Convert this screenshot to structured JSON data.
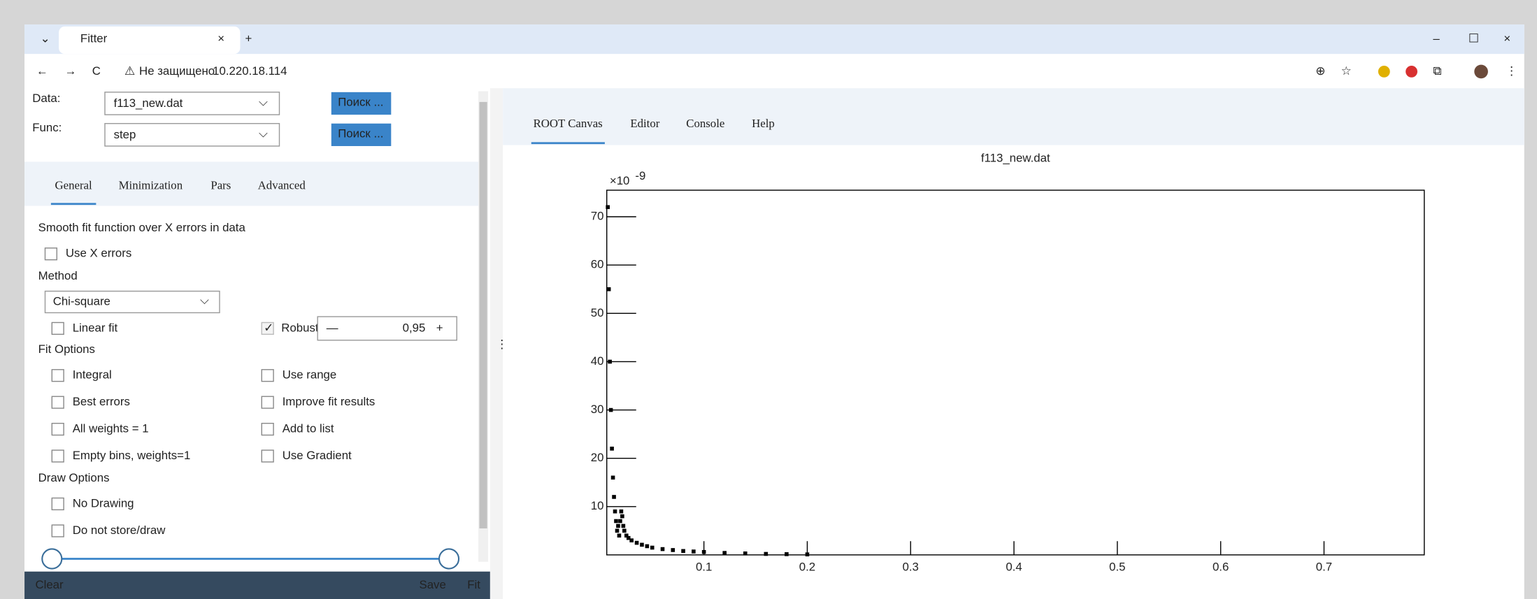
{
  "browser": {
    "tab_title": "Fitter",
    "new_tab": "+",
    "security": "Не защищено",
    "url": "10.220.18.114"
  },
  "fitter": {
    "data_label": "Data:",
    "data_value": "f113_new.dat",
    "func_label": "Func:",
    "func_value": "step",
    "search_buttons": [
      "Поиск ...",
      "Поиск ..."
    ],
    "tabs": [
      "General",
      "Minimization",
      "Pars",
      "Advanced"
    ],
    "smooth_heading": "Smooth fit function over X errors in data",
    "use_x_errors": "Use X errors",
    "method_heading": "Method",
    "method_value": "Chi-square",
    "linear_fit": "Linear fit",
    "robust": "Robust",
    "robust_minus": "—",
    "robust_value": "0,95",
    "robust_plus": "+",
    "fit_options_heading": "Fit Options",
    "fit_options": [
      [
        "Integral",
        "Use range"
      ],
      [
        "Best errors",
        "Improve fit results"
      ],
      [
        "All weights = 1",
        "Add to list"
      ],
      [
        "Empty bins, weights=1",
        "Use Gradient"
      ]
    ],
    "draw_options_heading": "Draw Options",
    "draw_options": [
      "No Drawing",
      "Do not store/draw"
    ],
    "footer": {
      "clear": "Clear",
      "save": "Save",
      "fit": "Fit"
    }
  },
  "canvas_tabs": [
    "ROOT Canvas",
    "Editor",
    "Console",
    "Help"
  ],
  "chart_data": {
    "type": "scatter",
    "title": "f113_new.dat",
    "y_multiplier": "×10",
    "y_multiplier_exponent": "-9",
    "x": [
      0.007,
      0.008,
      0.009,
      0.01,
      0.011,
      0.012,
      0.013,
      0.014,
      0.015,
      0.016,
      0.017,
      0.018,
      0.019,
      0.02,
      0.021,
      0.022,
      0.023,
      0.025,
      0.027,
      0.03,
      0.035,
      0.04,
      0.045,
      0.05,
      0.06,
      0.07,
      0.08,
      0.09,
      0.1,
      0.12,
      0.14,
      0.16,
      0.18,
      0.2
    ],
    "values": [
      72,
      55,
      40,
      30,
      22,
      16,
      12,
      9,
      7,
      5,
      6,
      4,
      7,
      9,
      8,
      6,
      5,
      4,
      3.5,
      3,
      2.5,
      2.1,
      1.8,
      1.5,
      1.2,
      1.0,
      0.8,
      0.7,
      0.6,
      0.4,
      0.3,
      0.2,
      0.15,
      0.1
    ],
    "color": "#000000",
    "xlim": [
      0.006,
      0.797
    ],
    "ylim": [
      0,
      75.5
    ],
    "xticks": [
      0.1,
      0.2,
      0.3,
      0.4,
      0.5,
      0.6,
      0.7
    ],
    "yticks": [
      10,
      20,
      30,
      40,
      50,
      60,
      70
    ]
  }
}
